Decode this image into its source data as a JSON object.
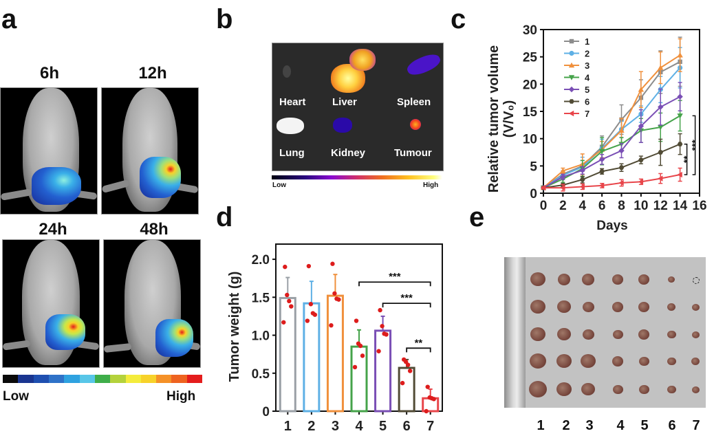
{
  "panels": {
    "a": {
      "label": "a",
      "timepoints": [
        "6h",
        "12h",
        "24h",
        "48h"
      ],
      "colorbar": {
        "low": "Low",
        "high": "High",
        "colors": [
          "#0a0a0a",
          "#1a3590",
          "#1f4fb0",
          "#2f72c8",
          "#2fa2e0",
          "#58c6e8",
          "#3fae4a",
          "#b4d23c",
          "#f4ec3c",
          "#f7d22a",
          "#f59128",
          "#ee6320",
          "#e41c1c"
        ]
      }
    },
    "b": {
      "label": "b",
      "organs": [
        "Heart",
        "Liver",
        "Spleen",
        "Lung",
        "Kidney",
        "Tumour"
      ],
      "colorbar": {
        "low": "Low",
        "high": "High"
      }
    },
    "c": {
      "label": "c"
    },
    "d": {
      "label": "d"
    },
    "e": {
      "label": "e",
      "group_labels": [
        "1",
        "2",
        "3",
        "4",
        "5",
        "6",
        "7"
      ]
    }
  },
  "chart_data": [
    {
      "panel": "c",
      "type": "line",
      "title": "",
      "xlabel": "Days",
      "ylabel": "Relative tumor volume (V/V₀)",
      "ylabel_line1": "Relative tumor volume",
      "ylabel_line2": "(V/V₀)",
      "xlim": [
        0,
        16
      ],
      "ylim": [
        0,
        30
      ],
      "xticks": [
        0,
        2,
        4,
        6,
        8,
        10,
        12,
        14,
        16
      ],
      "yticks": [
        0,
        5,
        10,
        15,
        20,
        25,
        30
      ],
      "grid": false,
      "legend_position": "top-left",
      "x": [
        0,
        2,
        4,
        6,
        8,
        10,
        12,
        14
      ],
      "series": [
        {
          "name": "1",
          "color": "#8c8c8c",
          "marker": "square",
          "values": [
            1,
            3.5,
            5.0,
            8.5,
            13.5,
            17.5,
            22.2,
            24.1
          ],
          "errors": [
            0.2,
            0.6,
            1.0,
            2.0,
            2.7,
            3.3,
            3.9,
            4.5
          ]
        },
        {
          "name": "2",
          "color": "#5eb0e5",
          "marker": "circle",
          "values": [
            1,
            3.3,
            4.8,
            8.2,
            11.7,
            14.5,
            19.0,
            23.0
          ],
          "errors": [
            0.2,
            0.6,
            1.8,
            1.7,
            1.5,
            1.5,
            2.4,
            3.7
          ]
        },
        {
          "name": "3",
          "color": "#f0903c",
          "marker": "triangle-up",
          "values": [
            1,
            4.1,
            5.3,
            8.0,
            11.5,
            19.0,
            23.0,
            25.3
          ],
          "errors": [
            0.2,
            0.5,
            1.9,
            1.5,
            2.2,
            3.3,
            2.9,
            3.0
          ]
        },
        {
          "name": "4",
          "color": "#45a34a",
          "marker": "triangle-down",
          "values": [
            1,
            2.6,
            4.5,
            7.7,
            9.0,
            11.5,
            12.1,
            14.2
          ],
          "errors": [
            0.2,
            0.6,
            1.5,
            2.5,
            1.2,
            2.2,
            2.6,
            2.8
          ]
        },
        {
          "name": "5",
          "color": "#7a4fb5",
          "marker": "diamond",
          "values": [
            1,
            3.0,
            4.2,
            6.2,
            7.8,
            12.3,
            15.8,
            17.7
          ],
          "errors": [
            0.2,
            0.5,
            0.7,
            0.9,
            1.3,
            3.0,
            3.3,
            2.6
          ]
        },
        {
          "name": "6",
          "color": "#514b35",
          "marker": "hexagon",
          "values": [
            1,
            1.5,
            2.5,
            4.0,
            4.7,
            6.1,
            7.5,
            9.0
          ],
          "errors": [
            0.2,
            0.3,
            0.6,
            0.5,
            0.7,
            0.7,
            2.4,
            1.9
          ]
        },
        {
          "name": "7",
          "color": "#e8454a",
          "marker": "triangle-left",
          "values": [
            1,
            1.0,
            1.2,
            1.4,
            1.9,
            2.1,
            2.7,
            3.4
          ],
          "errors": [
            0.2,
            0.6,
            0.5,
            0.4,
            0.6,
            0.5,
            0.9,
            1.2
          ]
        }
      ],
      "annotations": [
        {
          "text": "**",
          "between": [
            "6",
            "7"
          ],
          "at_x": 14
        },
        {
          "text": "***",
          "between": [
            "4",
            "7"
          ],
          "at_x": 14
        }
      ]
    },
    {
      "panel": "d",
      "type": "bar",
      "title": "",
      "xlabel": "",
      "ylabel": "Tumor weight (g)",
      "ylim": [
        0,
        2.2
      ],
      "yticks": [
        "0",
        "0.5",
        "1.0",
        "1.5",
        "2.0"
      ],
      "ytick_values": [
        0,
        0.5,
        1.0,
        1.5,
        2.0
      ],
      "grid": false,
      "categories": [
        "1",
        "2",
        "3",
        "4",
        "5",
        "6",
        "7"
      ],
      "colors": [
        "#9aa0a6",
        "#5eb0e5",
        "#f0903c",
        "#45a34a",
        "#7a4fb5",
        "#514b35",
        "#e8454a"
      ],
      "values": [
        1.49,
        1.42,
        1.52,
        0.85,
        1.06,
        0.57,
        0.17
      ],
      "errors": [
        0.27,
        0.29,
        0.28,
        0.22,
        0.19,
        0.11,
        0.12
      ],
      "points_color": "#dd1c1c",
      "points": [
        [
          1.9,
          1.53,
          1.45,
          1.38,
          1.17
        ],
        [
          1.91,
          1.41,
          1.29,
          1.27,
          1.19
        ],
        [
          1.94,
          1.55,
          1.48,
          1.47,
          1.13
        ],
        [
          1.19,
          0.89,
          0.86,
          0.73,
          0.58
        ],
        [
          1.33,
          1.12,
          1.02,
          1.01,
          0.79
        ],
        [
          0.68,
          0.65,
          0.61,
          0.53,
          0.37
        ],
        [
          0.32,
          0.18,
          0.17,
          0.16,
          0.0
        ]
      ],
      "annotations": [
        {
          "text": "***",
          "from": "4",
          "to": "7",
          "level": 1.7
        },
        {
          "text": "***",
          "from": "5",
          "to": "7",
          "level": 1.42
        },
        {
          "text": "**",
          "from": "6",
          "to": "7",
          "level": 0.83
        }
      ]
    }
  ]
}
